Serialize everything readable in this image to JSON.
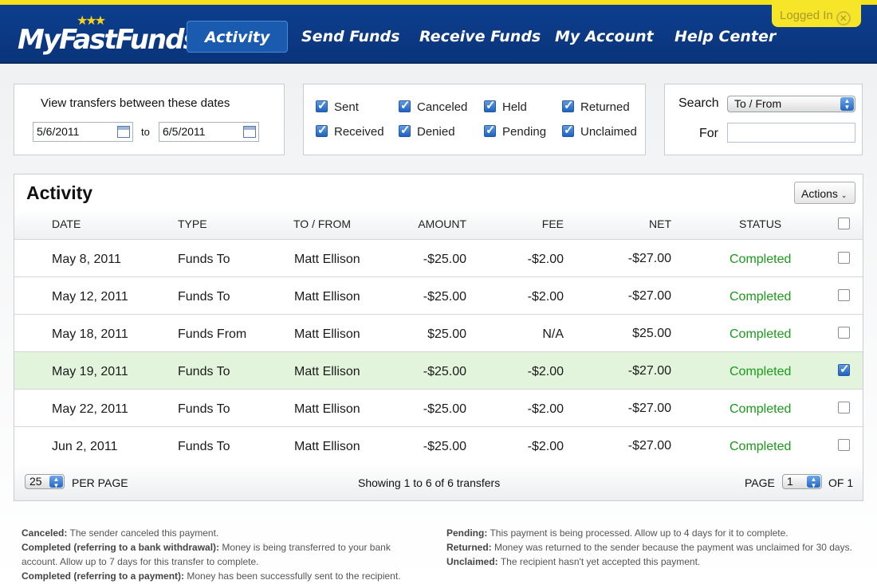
{
  "header": {
    "logo": "MyFastFunds",
    "nav": [
      "Activity",
      "Send Funds",
      "Receive Funds",
      "My Account",
      "Help Center"
    ],
    "active": "Activity",
    "login": "Logged In"
  },
  "dates": {
    "label": "View transfers between these dates",
    "from": "5/6/2011",
    "to_label": "to",
    "to": "6/5/2011"
  },
  "filters": [
    {
      "label": "Sent",
      "checked": true
    },
    {
      "label": "Received",
      "checked": true
    },
    {
      "label": "Canceled",
      "checked": true
    },
    {
      "label": "Denied",
      "checked": true
    },
    {
      "label": "Held",
      "checked": true
    },
    {
      "label": "Pending",
      "checked": true
    },
    {
      "label": "Returned",
      "checked": true
    },
    {
      "label": "Unclaimed",
      "checked": true
    }
  ],
  "search": {
    "label": "Search",
    "field": "To / From",
    "for_label": "For",
    "for_value": ""
  },
  "activity": {
    "title": "Activity",
    "actions": "Actions",
    "columns": [
      "DATE",
      "TYPE",
      "TO / FROM",
      "AMOUNT",
      "FEE",
      "NET",
      "STATUS"
    ],
    "rows": [
      {
        "date": "May 8, 2011",
        "type": "Funds To",
        "party": "Matt Ellison",
        "amount": "-$25.00",
        "fee": "-$2.00",
        "net": "-$27.00",
        "status": "Completed",
        "checked": false
      },
      {
        "date": "May 12, 2011",
        "type": "Funds To",
        "party": "Matt Ellison",
        "amount": "-$25.00",
        "fee": "-$2.00",
        "net": "-$27.00",
        "status": "Completed",
        "checked": false
      },
      {
        "date": "May 18, 2011",
        "type": "Funds From",
        "party": "Matt Ellison",
        "amount": "$25.00",
        "fee": "N/A",
        "net": "$25.00",
        "status": "Completed",
        "checked": false
      },
      {
        "date": "May 19, 2011",
        "type": "Funds To",
        "party": "Matt Ellison",
        "amount": "-$25.00",
        "fee": "-$2.00",
        "net": "-$27.00",
        "status": "Completed",
        "checked": true
      },
      {
        "date": "May 22, 2011",
        "type": "Funds To",
        "party": "Matt Ellison",
        "amount": "-$25.00",
        "fee": "-$2.00",
        "net": "-$27.00",
        "status": "Completed",
        "checked": false
      },
      {
        "date": "Jun 2, 2011",
        "type": "Funds To",
        "party": "Matt Ellison",
        "amount": "-$25.00",
        "fee": "-$2.00",
        "net": "-$27.00",
        "status": "Completed",
        "checked": false
      }
    ],
    "per_page": "25",
    "per_page_label": "PER PAGE",
    "showing": "Showing 1 to 6 of 6 transfers",
    "page_label": "PAGE",
    "page": "1",
    "of": "OF 1"
  },
  "legend": [
    {
      "term": "Canceled:",
      "text": "The sender canceled this payment."
    },
    {
      "term": "Completed (referring to a bank withdrawal):",
      "text": "Money is being transferred to your bank account. Allow up to 7 days for this transfer to complete."
    },
    {
      "term": "Completed (referring to a payment):",
      "text": "Money has been successfully sent to the recipient."
    },
    {
      "term": "Pending:",
      "text": "This payment is being processed. Allow up to 4 days for it to complete."
    },
    {
      "term": "Returned:",
      "text": "Money was returned to the sender because the payment was unclaimed for 30 days."
    },
    {
      "term": "Unclaimed:",
      "text": "The recipient hasn't yet accepted this payment."
    }
  ],
  "colors": {
    "brand": "#0d3f8e",
    "accent": "#f3e21c",
    "status_completed": "#1a9a1a",
    "selected_row": "#e2f5dc"
  }
}
